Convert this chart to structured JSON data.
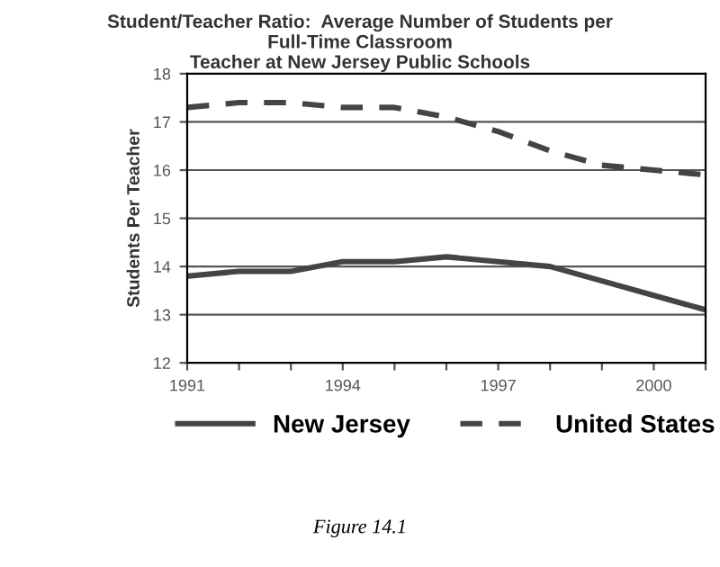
{
  "chart_data": {
    "type": "line",
    "title": "Student/Teacher Ratio:  Average Number of Students per\nFull-Time Classroom\nTeacher at New Jersey Public Schools",
    "ylabel": "Students Per Teacher",
    "x": [
      1991,
      1992,
      1993,
      1994,
      1995,
      1996,
      1997,
      1998,
      1999,
      2000,
      2001
    ],
    "series": [
      {
        "name": "New Jersey",
        "color": "#444444",
        "line_style": "solid",
        "values": [
          13.8,
          13.9,
          13.9,
          14.1,
          14.1,
          14.2,
          14.1,
          14.0,
          13.7,
          13.4,
          13.1
        ]
      },
      {
        "name": "United States",
        "color": "#444444",
        "line_style": "dashed",
        "values": [
          17.3,
          17.4,
          17.4,
          17.3,
          17.3,
          17.1,
          16.8,
          16.4,
          16.1,
          16.0,
          15.9
        ]
      }
    ],
    "xlim": [
      1991,
      2001
    ],
    "xticks": [
      1991,
      {
        "value": 1992,
        "label": null
      },
      {
        "value": 1993,
        "label": null
      },
      1994,
      {
        "value": 1995,
        "label": null
      },
      {
        "value": 1996,
        "label": null
      },
      1997,
      {
        "value": 1998,
        "label": null
      },
      {
        "value": 1999,
        "label": null
      },
      2000,
      {
        "value": 2001,
        "label": null
      }
    ],
    "ylim": [
      12,
      18
    ],
    "yticks": [
      12,
      13,
      14,
      15,
      16,
      17,
      18
    ],
    "grid": "y",
    "legend": "bottom",
    "annotations": [
      "Figure 14.1"
    ]
  }
}
